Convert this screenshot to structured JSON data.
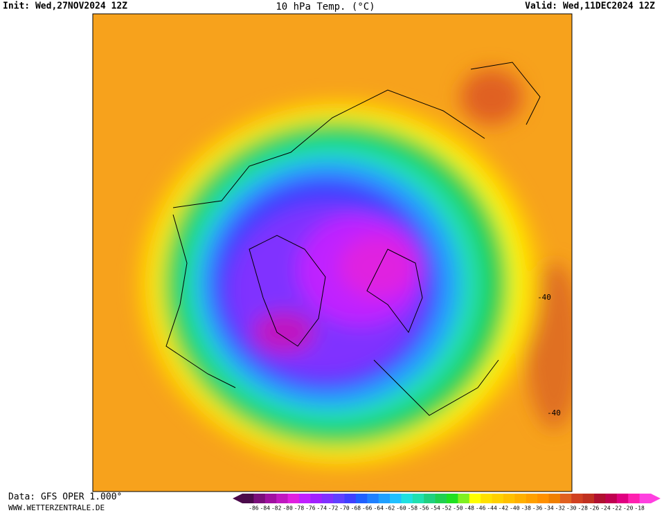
{
  "header": {
    "init": "Init: Wed,27NOV2024 12Z",
    "title": "10 hPa Temp. (°C)",
    "valid": "Valid: Wed,11DEC2024 12Z"
  },
  "map": {
    "labels": [
      "-40",
      "-40"
    ]
  },
  "footer": {
    "source": "Data: GFS OPER 1.000°",
    "site": "WWW.WETTERZENTRALE.DE"
  },
  "colorbar": {
    "colors": [
      "#4b0a4b",
      "#7a0e7a",
      "#a010a0",
      "#c018c0",
      "#e020e0",
      "#c020ff",
      "#a020ff",
      "#8030ff",
      "#6040ff",
      "#4040ff",
      "#2060ff",
      "#2080ff",
      "#20a0ff",
      "#20c0ff",
      "#20e0e0",
      "#20e0b0",
      "#20d080",
      "#20d050",
      "#20e020",
      "#80f020",
      "#ffff00",
      "#ffe000",
      "#ffd000",
      "#ffc000",
      "#ffb000",
      "#ffa000",
      "#ff9000",
      "#f08000",
      "#e06020",
      "#d04020",
      "#c03020",
      "#b01030",
      "#c00050",
      "#e00080",
      "#ff20b0",
      "#ff40e0"
    ],
    "labels": [
      -86,
      -84,
      -82,
      -80,
      -78,
      -76,
      -74,
      -72,
      -70,
      -68,
      -66,
      -64,
      -62,
      -60,
      -58,
      -56,
      -54,
      -52,
      -50,
      -48,
      -46,
      -44,
      -42,
      -40,
      -38,
      -36,
      -34,
      -32,
      -30,
      -28,
      -26,
      -24,
      -22,
      -20,
      -18
    ]
  }
}
